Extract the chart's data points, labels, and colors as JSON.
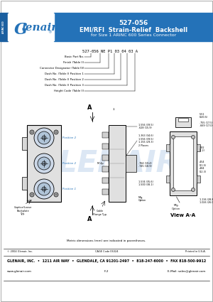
{
  "title_part": "527-056",
  "title_main": "EMI/RFI  Strain-Relief  Backshell",
  "title_sub": "for Size 1 ARINC 600 Series Connector",
  "header_bg": "#2472b8",
  "header_text_color": "#ffffff",
  "logo_text": "Glenair.",
  "side_label1": "ARINC",
  "side_label2": "600",
  "part_number_label": "527-056 NE P1 03 04 03 A",
  "callouts": [
    "Basic Part No.",
    "Finish (Table II)",
    "Connector Designator (Table IV)",
    "Dash No. (Table I) Position 1",
    "Dash No. (Table I) Position 2",
    "Dash No. (Table I) Position 3",
    "Height Code (Table II)"
  ],
  "view_label": "View A-A",
  "metric_note": "Metric dimensions (mm) are indicated in parentheses.",
  "footer_copy": "© 2004 Glenair, Inc.",
  "footer_cage": "CAGE Code 06324",
  "footer_printed": "Printed in U.S.A.",
  "footer_bold": "GLENAIR, INC.  •  1211 AIR WAY  •  GLENDALE, CA 91201-2497  •  818-247-6000  •  FAX 818-500-9912",
  "footer_web": "www.glenair.com",
  "footer_f2": "F-2",
  "footer_email": "E-Mail: sales@glenair.com",
  "bg_color": "#ffffff",
  "blue": "#2472b8",
  "dim_color": "#222222",
  "light_gray": "#e0e0e0",
  "med_gray": "#c0c0c0",
  "dark_gray": "#888888",
  "watermark": "#c5d8ee"
}
